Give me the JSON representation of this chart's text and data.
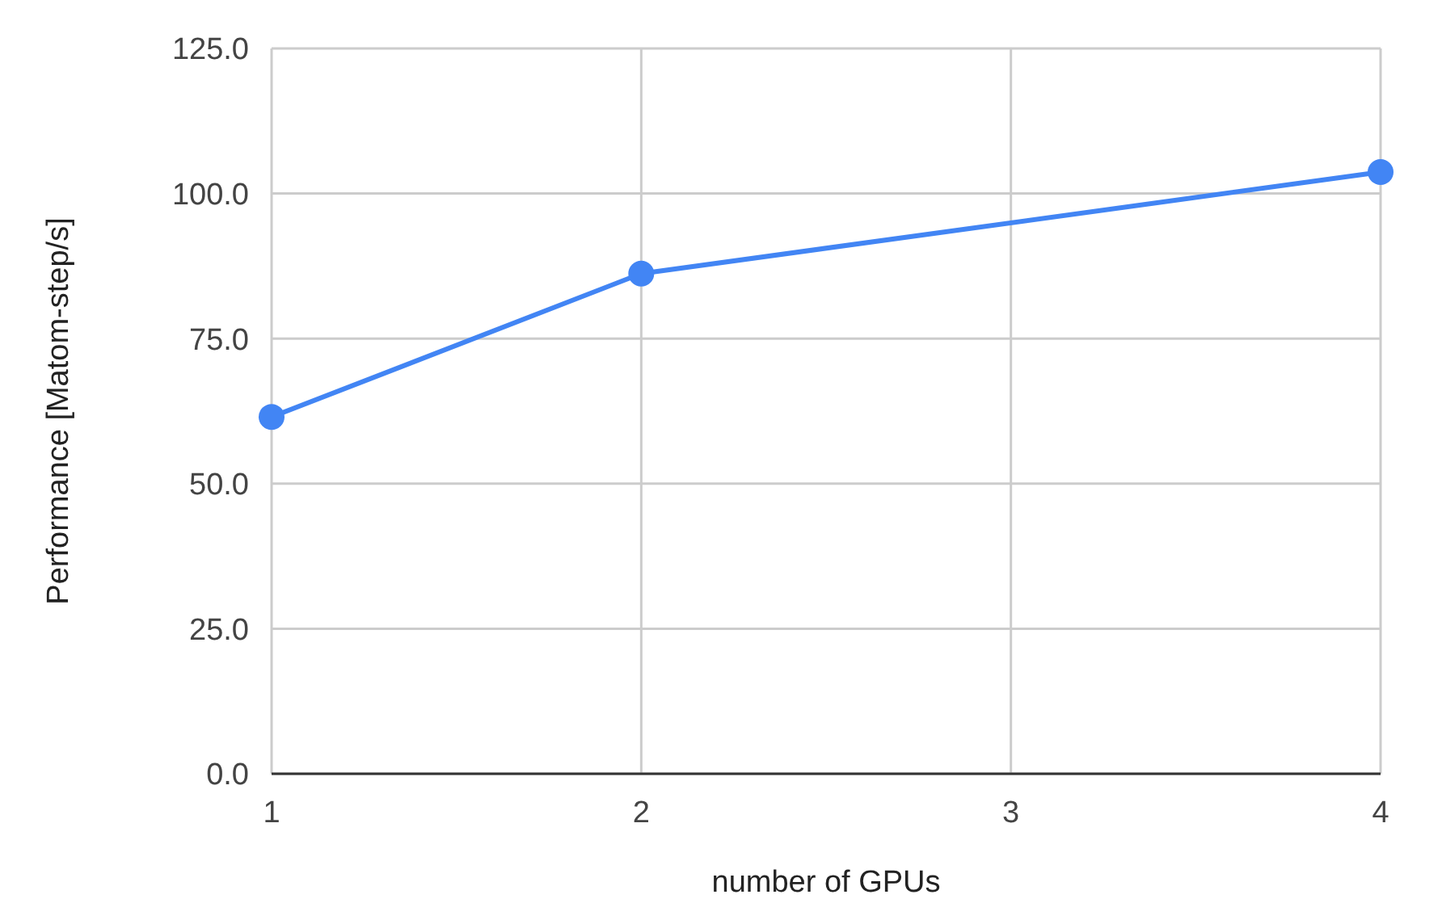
{
  "chart_data": {
    "type": "line",
    "xlabel": "number of GPUs",
    "ylabel": "Performance [Matom-step/s]",
    "x": [
      1,
      2,
      4
    ],
    "series": [
      {
        "color": "#4285f4",
        "values": [
          61.5,
          86.2,
          103.7
        ]
      }
    ],
    "xlim": [
      1,
      4
    ],
    "xticks": [
      1,
      2,
      3,
      4
    ],
    "ylim": [
      0,
      125
    ],
    "yticks": [
      {
        "value": 0,
        "label": "0.0"
      },
      {
        "value": 25,
        "label": "25.0"
      },
      {
        "value": 50,
        "label": "50.0"
      },
      {
        "value": 75,
        "label": "75.0"
      },
      {
        "value": 100,
        "label": "100.0"
      },
      {
        "value": 125,
        "label": "125.0"
      }
    ],
    "grid": true,
    "marker": "circle",
    "line_style": "solid"
  }
}
